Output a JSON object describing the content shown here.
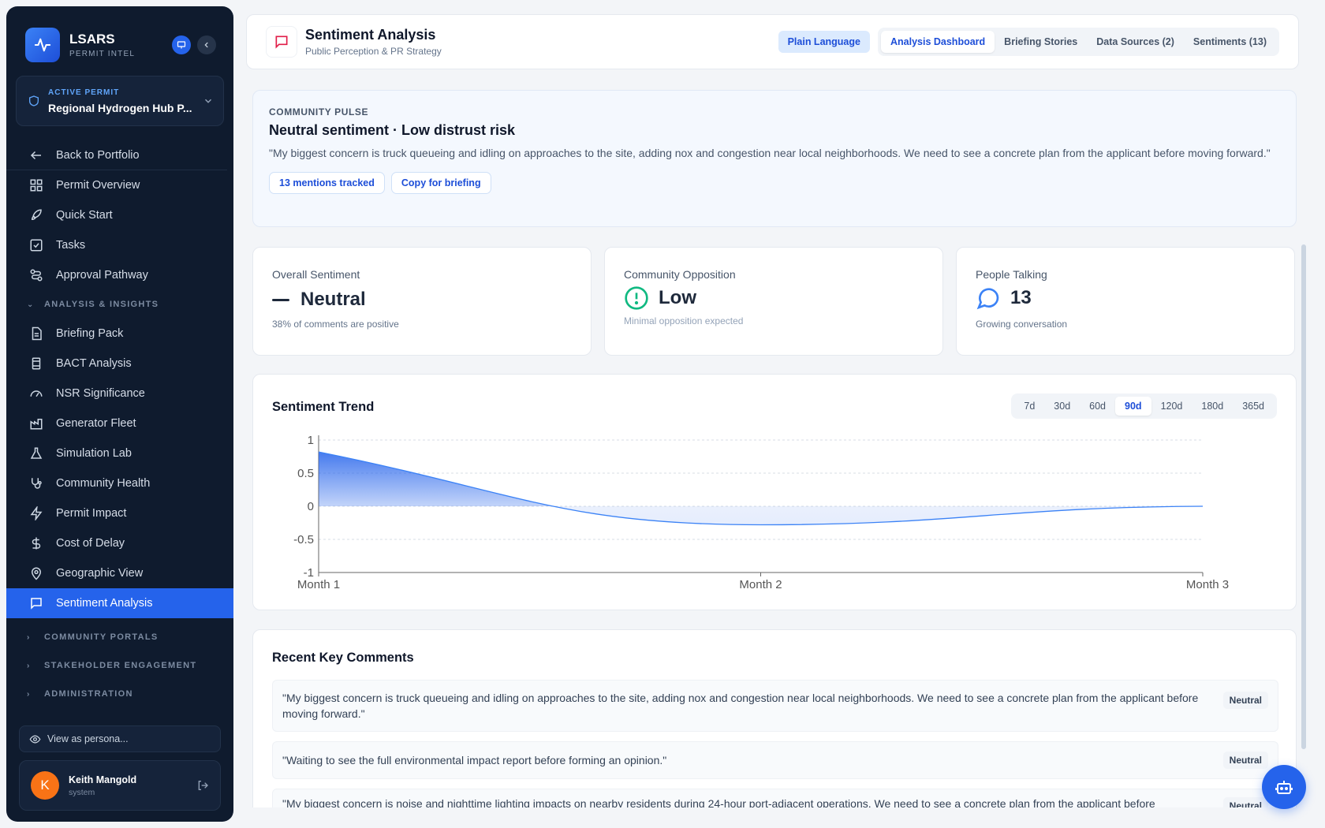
{
  "brand": {
    "name": "LSARS",
    "subtitle": "PERMIT INTEL"
  },
  "permit": {
    "label": "ACTIVE PERMIT",
    "name": "Regional Hydrogen Hub P..."
  },
  "sidebar": {
    "back": "Back to Portfolio",
    "items_top": [
      "Permit Overview",
      "Quick Start",
      "Tasks",
      "Approval Pathway"
    ],
    "analysis_section": "ANALYSIS & INSIGHTS",
    "items_analysis": [
      "Briefing Pack",
      "BACT Analysis",
      "NSR Significance",
      "Generator Fleet",
      "Simulation Lab",
      "Community Health",
      "Permit Impact",
      "Cost of Delay",
      "Geographic View",
      "Sentiment Analysis"
    ],
    "collapsed_sections": [
      "COMMUNITY PORTALS",
      "STAKEHOLDER ENGAGEMENT",
      "ADMINISTRATION"
    ],
    "persona": "View as persona...",
    "user": {
      "name": "Keith Mangold",
      "role": "system",
      "initial": "K"
    }
  },
  "header": {
    "title": "Sentiment Analysis",
    "subtitle": "Public Perception & PR Strategy",
    "plain_language": "Plain Language",
    "tabs": [
      "Analysis Dashboard",
      "Briefing Stories",
      "Data Sources (2)",
      "Sentiments (13)"
    ],
    "active_tab": "Analysis Dashboard"
  },
  "pulse": {
    "eyebrow": "COMMUNITY PULSE",
    "headline": "Neutral sentiment · Low distrust risk",
    "quote": "\"My biggest concern is truck queueing and idling on approaches to the site, adding nox and congestion near local neighborhoods. We need to see a concrete plan from the applicant before moving forward.\"",
    "chip_mentions": "13 mentions tracked",
    "chip_copy": "Copy for briefing"
  },
  "metrics": [
    {
      "label": "Overall Sentiment",
      "value": "Neutral",
      "sub": "38% of comments are positive"
    },
    {
      "label": "Community Opposition",
      "value": "Low",
      "sub": "Minimal opposition expected"
    },
    {
      "label": "People Talking",
      "value": "13",
      "sub": "Growing conversation"
    }
  ],
  "trend": {
    "title": "Sentiment Trend",
    "ranges": [
      "7d",
      "30d",
      "60d",
      "90d",
      "120d",
      "180d",
      "365d"
    ],
    "active_range": "90d"
  },
  "chart_data": {
    "type": "area",
    "title": "Sentiment Trend",
    "x": [
      "Month 1",
      "Month 2",
      "Month 3"
    ],
    "series": [
      {
        "values": [
          0.82,
          -0.28,
          0.0
        ]
      }
    ],
    "y_ticks": [
      "1",
      "0.5",
      "0",
      "-0.5",
      "-1"
    ],
    "ylim": [
      -1,
      1
    ],
    "grid": true,
    "colors": {
      "line": "#3b82f6",
      "fill": "#2563eb"
    }
  },
  "comments": {
    "title": "Recent Key Comments",
    "items": [
      {
        "text": "\"My biggest concern is truck queueing and idling on approaches to the site, adding nox and congestion near local neighborhoods. We need to see a concrete plan from the applicant before moving forward.\"",
        "tag": "Neutral"
      },
      {
        "text": "\"Waiting to see the full environmental impact report before forming an opinion.\"",
        "tag": "Neutral"
      },
      {
        "text": "\"My biggest concern is noise and nighttime lighting impacts on nearby residents during 24-hour port-adjacent operations. We need to see a concrete plan from the applicant before",
        "tag": "Neutral"
      }
    ]
  },
  "colors": {
    "accent": "#2563eb",
    "sidebar_bg": "#0f1b2e",
    "low_risk": "#10b981",
    "avatar": "#f97316"
  }
}
